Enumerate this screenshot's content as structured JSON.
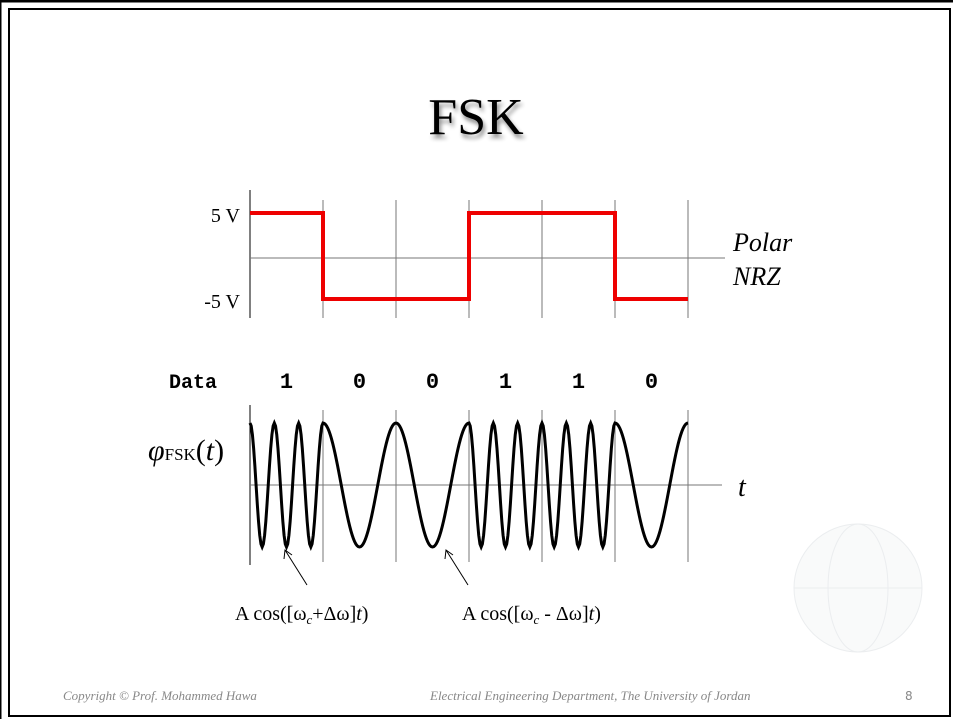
{
  "title": "FSK",
  "nrz": {
    "high_label": "5 V",
    "low_label": "-5 V",
    "name_lines": [
      "Polar",
      "NRZ"
    ]
  },
  "data_row": {
    "label": "Data",
    "bits": [
      "1",
      "0",
      "0",
      "1",
      "1",
      "0"
    ]
  },
  "fsk": {
    "signal_label": {
      "symbol": "φ",
      "subscript": "FSK",
      "argument_open": "(",
      "argument": "t",
      "argument_close": ")"
    },
    "time_label": "t"
  },
  "annotations": [
    {
      "parts": [
        "A cos([ω",
        "c",
        "+Δω]",
        "t",
        ")"
      ]
    },
    {
      "parts": [
        "A cos([ω",
        "c",
        " - Δω]",
        "t",
        ")"
      ]
    }
  ],
  "footer": {
    "copyright": "Copyright © Prof. Mohammed Hawa",
    "department": "Electrical Engineering Department, The University of Jordan",
    "page": "8"
  }
}
